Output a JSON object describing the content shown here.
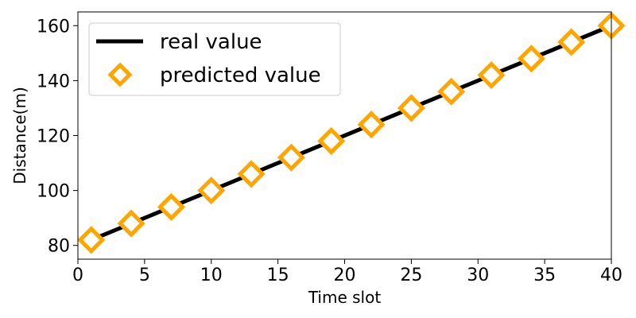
{
  "chart_data": {
    "type": "line",
    "xlabel": "Time slot",
    "ylabel": "Distance(m)",
    "xlim": [
      0,
      40
    ],
    "ylim": [
      75,
      165
    ],
    "xticks": [
      0,
      5,
      10,
      15,
      20,
      25,
      30,
      35,
      40
    ],
    "yticks": [
      80,
      100,
      120,
      140,
      160
    ],
    "grid": false,
    "legend_position": "upper-left",
    "series": [
      {
        "name": "real value",
        "style": "line",
        "color": "#000000",
        "x": [
          1,
          40
        ],
        "y": [
          82,
          160
        ]
      },
      {
        "name": "predicted value",
        "style": "marker-diamond",
        "color": "#FFA500",
        "x": [
          1,
          4,
          7,
          10,
          13,
          16,
          19,
          22,
          25,
          28,
          31,
          34,
          37,
          40
        ],
        "y": [
          82,
          88,
          94,
          100,
          106,
          112,
          118,
          124,
          130,
          136,
          142,
          148,
          154,
          160
        ]
      }
    ]
  }
}
